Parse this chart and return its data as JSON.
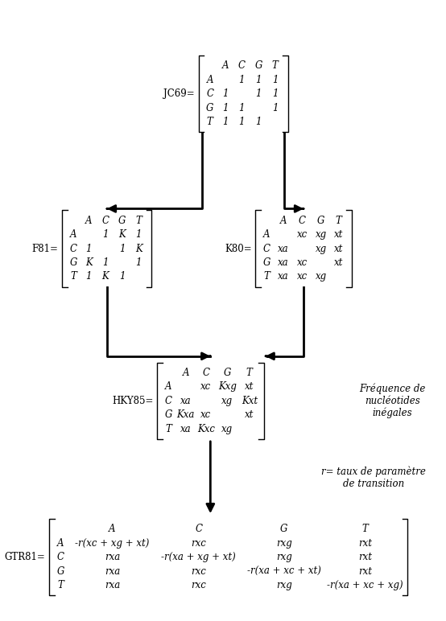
{
  "bg_color": "#ffffff",
  "jc69_label": "JC69=",
  "jc69_rows": [
    [
      "",
      "A",
      "C",
      "G",
      "T"
    ],
    [
      "A",
      "",
      "1",
      "1",
      "1"
    ],
    [
      "C",
      "1",
      "",
      "1",
      "1"
    ],
    [
      "G",
      "1",
      "1",
      "",
      "1"
    ],
    [
      "T",
      "1",
      "1",
      "1",
      ""
    ]
  ],
  "f81_label": "F81=",
  "f81_rows": [
    [
      "",
      "A",
      "C",
      "G",
      "T"
    ],
    [
      "A",
      "",
      "1",
      "K",
      "1"
    ],
    [
      "C",
      "1",
      "",
      "1",
      "K"
    ],
    [
      "G",
      "K",
      "1",
      "",
      "1"
    ],
    [
      "T",
      "1",
      "K",
      "1",
      ""
    ]
  ],
  "k80_label": "K80=",
  "k80_rows": [
    [
      "",
      "A",
      "C",
      "G",
      "T"
    ],
    [
      "A",
      "",
      "xc",
      "xg",
      "xt"
    ],
    [
      "C",
      "xa",
      "",
      "xg",
      "xt"
    ],
    [
      "G",
      "xa",
      "xc",
      "",
      "xt"
    ],
    [
      "T",
      "xa",
      "xc",
      "xg",
      ""
    ]
  ],
  "hky85_label": "HKY85=",
  "hky85_rows": [
    [
      "",
      "A",
      "C",
      "G",
      "T"
    ],
    [
      "A",
      "",
      "xc",
      "Kxg",
      "xt"
    ],
    [
      "C",
      "xa",
      "",
      "xg",
      "Kxt"
    ],
    [
      "G",
      "Kxa",
      "xc",
      "",
      "xt"
    ],
    [
      "T",
      "xa",
      "Kxc",
      "xg",
      ""
    ]
  ],
  "gtr81_label": "GTR81=",
  "gtr81_rows": [
    [
      "",
      "A",
      "C",
      "G",
      "T"
    ],
    [
      "A",
      "-r(xc + xg + xt)",
      "rxc",
      "rxg",
      "rxt"
    ],
    [
      "C",
      "rxa",
      "-r(xa + xg + xt)",
      "rxg",
      "rxt"
    ],
    [
      "G",
      "rxa",
      "rxc",
      "-r(xa + xc + xt)",
      "rxt"
    ],
    [
      "T",
      "rxa",
      "rxc",
      "rxg",
      "-r(xa + xc + xg)"
    ]
  ],
  "freq_note": "Fréquence de\nnucléotides\ninégales",
  "r_note": "r= taux de paramètre\nde transition"
}
